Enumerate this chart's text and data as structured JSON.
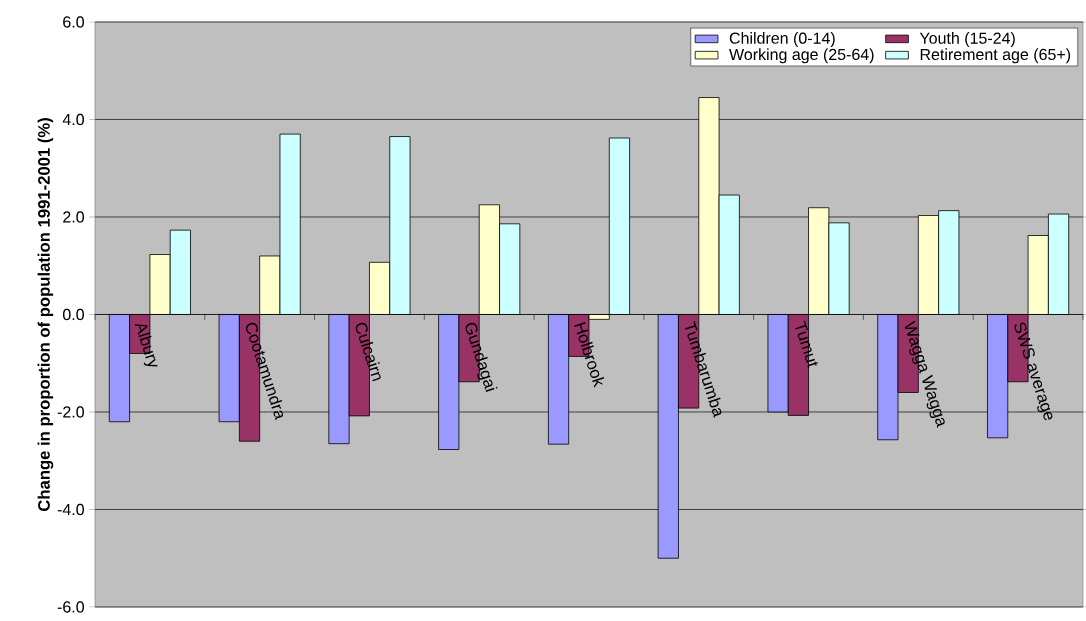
{
  "chart_data": {
    "type": "bar",
    "ylabel": "Change in proportion of population 1991-2001 (%)",
    "categories": [
      "Albury",
      "Cootamundra",
      "Culcairn",
      "Gundagai",
      "Holbrook",
      "Tumbarumba",
      "Tumut",
      "Wagga Wagga",
      "SWS average"
    ],
    "series": [
      {
        "name": "Children (0-14)",
        "color": "#9999ff",
        "values": [
          -2.2,
          -2.2,
          -2.65,
          -2.77,
          -2.66,
          -5.0,
          -2.0,
          -2.57,
          -2.53
        ]
      },
      {
        "name": "Youth (15-24)",
        "color": "#993366",
        "values": [
          -0.8,
          -2.6,
          -2.08,
          -1.38,
          -0.86,
          -1.92,
          -2.07,
          -1.6,
          -1.38
        ]
      },
      {
        "name": "Working age (25-64)",
        "color": "#ffffcc",
        "values": [
          1.23,
          1.2,
          1.07,
          2.25,
          -0.1,
          4.45,
          2.19,
          2.03,
          1.62
        ]
      },
      {
        "name": "Retirement age (65+)",
        "color": "#ccffff",
        "values": [
          1.73,
          3.7,
          3.65,
          1.86,
          3.62,
          2.45,
          1.88,
          2.13,
          2.06
        ]
      }
    ],
    "ylim": [
      -6,
      6
    ],
    "yticks": [
      {
        "value": -6,
        "label": "-6.0"
      },
      {
        "value": -4,
        "label": "-4.0"
      },
      {
        "value": -2,
        "label": "-2.0"
      },
      {
        "value": 0,
        "label": "0.0"
      },
      {
        "value": 2,
        "label": "2.0"
      },
      {
        "value": 4,
        "label": "4.0"
      },
      {
        "value": 6,
        "label": "6.0"
      }
    ],
    "grid": "y",
    "legend": "top right"
  }
}
